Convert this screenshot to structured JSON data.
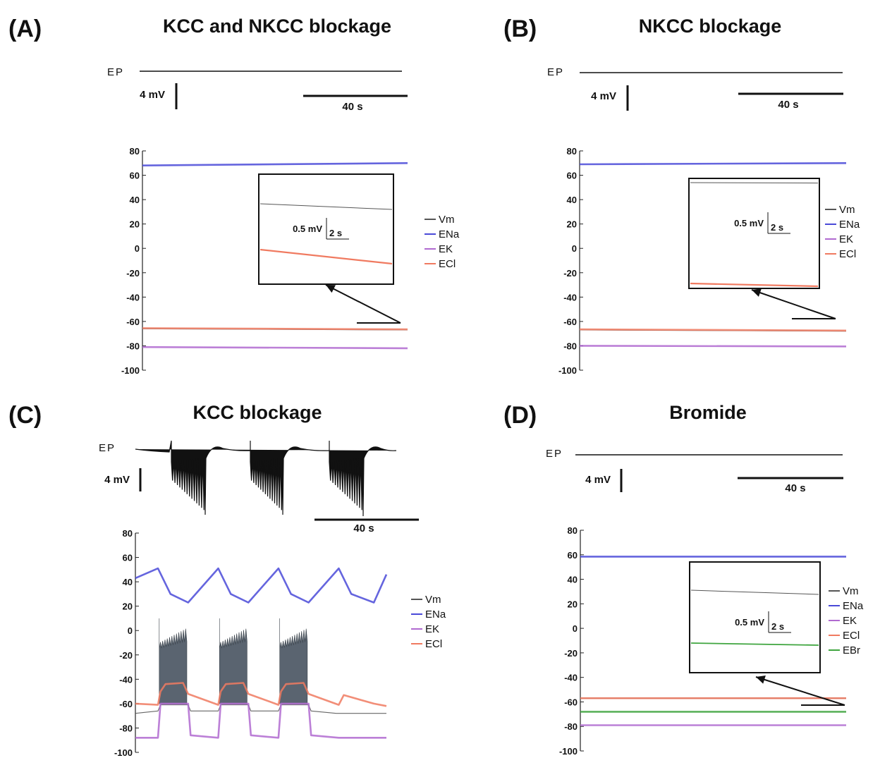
{
  "chart_data": [
    {
      "panel": "(A)",
      "title": "KCC and NKCC blockage",
      "type": "line",
      "trace_label": "EP",
      "scale_y": "4 mV",
      "scale_x": "40 s",
      "ylim": [
        -100,
        80
      ],
      "yticks": [
        "80",
        "60",
        "40",
        "20",
        "0",
        "-20",
        "-40",
        "-60",
        "-80",
        "-100"
      ],
      "legend": [
        "Vm",
        "ENa",
        "EK",
        "ECl"
      ],
      "inset": {
        "scale_y": "0.5 mV",
        "scale_x": "2 s"
      },
      "series": [
        {
          "name": "Vm",
          "color": "#555555",
          "x": [
            0,
            1
          ],
          "y": [
            -66,
            -67
          ]
        },
        {
          "name": "ENa",
          "color": "#4a4ad8",
          "x": [
            0,
            1
          ],
          "y": [
            68,
            70
          ]
        },
        {
          "name": "EK",
          "color": "#b06ad0",
          "x": [
            0,
            1
          ],
          "y": [
            -81,
            -82
          ]
        },
        {
          "name": "ECl",
          "color": "#f07a60",
          "x": [
            0,
            1
          ],
          "y": [
            -65.5,
            -66.5
          ]
        }
      ]
    },
    {
      "panel": "(B)",
      "title": "NKCC blockage",
      "type": "line",
      "trace_label": "EP",
      "scale_y": "4 mV",
      "scale_x": "40 s",
      "ylim": [
        -100,
        80
      ],
      "yticks": [
        "80",
        "60",
        "40",
        "20",
        "0",
        "-20",
        "-40",
        "-60",
        "-80",
        "-100"
      ],
      "legend": [
        "Vm",
        "ENa",
        "EK",
        "ECl"
      ],
      "inset": {
        "scale_y": "0.5 mV",
        "scale_x": "2 s"
      },
      "series": [
        {
          "name": "Vm",
          "color": "#555555",
          "x": [
            0,
            1
          ],
          "y": [
            -67,
            -68
          ]
        },
        {
          "name": "ENa",
          "color": "#4a4ad8",
          "x": [
            0,
            1
          ],
          "y": [
            69,
            70
          ]
        },
        {
          "name": "EK",
          "color": "#b06ad0",
          "x": [
            0,
            1
          ],
          "y": [
            -80,
            -80.5
          ]
        },
        {
          "name": "ECl",
          "color": "#f07a60",
          "x": [
            0,
            1
          ],
          "y": [
            -66.5,
            -67.5
          ]
        }
      ]
    },
    {
      "panel": "(C)",
      "title": "KCC blockage",
      "type": "line",
      "trace_label": "EP",
      "scale_y": "4 mV",
      "scale_x": "40 s",
      "ylim": [
        -100,
        80
      ],
      "yticks": [
        "80",
        "60",
        "40",
        "20",
        "0",
        "-20",
        "-40",
        "-60",
        "-80",
        "-100"
      ],
      "legend": [
        "Vm",
        "ENa",
        "EK",
        "ECl"
      ],
      "series": [
        {
          "name": "ENa",
          "color": "#4a4ad8",
          "x": [
            0,
            0.09,
            0.14,
            0.21,
            0.33,
            0.38,
            0.45,
            0.57,
            0.62,
            0.69,
            0.81,
            0.86,
            0.95,
            1
          ],
          "y": [
            43,
            51,
            30,
            23,
            51,
            30,
            23,
            51,
            30,
            23,
            51,
            30,
            23,
            46
          ]
        },
        {
          "name": "ECl",
          "color": "#f07a60",
          "x": [
            0,
            0.09,
            0.1,
            0.12,
            0.19,
            0.21,
            0.33,
            0.34,
            0.36,
            0.43,
            0.45,
            0.57,
            0.58,
            0.6,
            0.67,
            0.69,
            0.81,
            0.83,
            0.95,
            1
          ],
          "y": [
            -60,
            -61,
            -50,
            -44,
            -43,
            -52,
            -61,
            -50,
            -44,
            -43,
            -52,
            -61,
            -50,
            -44,
            -43,
            -52,
            -61,
            -53,
            -60,
            -62
          ]
        },
        {
          "name": "Vm",
          "color": "#555555",
          "x": [
            0,
            0.09,
            0.1,
            0.21,
            0.22,
            0.33,
            0.34,
            0.45,
            0.46,
            0.57,
            0.58,
            0.69,
            0.7,
            0.8,
            1
          ],
          "y": [
            -68,
            -66,
            -61,
            -61,
            -66,
            -66,
            -61,
            -61,
            -66,
            -66,
            -61,
            -61,
            -66,
            -68,
            -68
          ]
        },
        {
          "name": "EK",
          "color": "#b06ad0",
          "x": [
            0,
            0.09,
            0.1,
            0.21,
            0.22,
            0.33,
            0.34,
            0.45,
            0.46,
            0.57,
            0.58,
            0.69,
            0.7,
            0.81,
            1
          ],
          "y": [
            -88,
            -88,
            -60,
            -60,
            -86,
            -88,
            -60,
            -60,
            -86,
            -88,
            -60,
            -60,
            -86,
            -88,
            -88
          ]
        }
      ]
    },
    {
      "panel": "(D)",
      "title": "Bromide",
      "type": "line",
      "trace_label": "EP",
      "scale_y": "4 mV",
      "scale_x": "40 s",
      "ylim": [
        -100,
        80
      ],
      "yticks": [
        "80",
        "60",
        "40",
        "20",
        "0",
        "-20",
        "-40",
        "-60",
        "-80",
        "-100"
      ],
      "legend": [
        "Vm",
        "ENa",
        "EK",
        "ECl",
        "EBr"
      ],
      "inset": {
        "scale_y": "0.5 mV",
        "scale_x": "2 s"
      },
      "series": [
        {
          "name": "Vm",
          "color": "#555555",
          "x": [
            0,
            1
          ],
          "y": [
            -57,
            -57
          ]
        },
        {
          "name": "ENa",
          "color": "#4a4ad8",
          "x": [
            0,
            1
          ],
          "y": [
            58.5,
            58.5
          ]
        },
        {
          "name": "EK",
          "color": "#b06ad0",
          "x": [
            0,
            1
          ],
          "y": [
            -79,
            -79
          ]
        },
        {
          "name": "ECl",
          "color": "#f07a60",
          "x": [
            0,
            1
          ],
          "y": [
            -57,
            -57
          ]
        },
        {
          "name": "EBr",
          "color": "#3fa53f",
          "x": [
            0,
            1
          ],
          "y": [
            -68,
            -68
          ]
        }
      ]
    }
  ]
}
